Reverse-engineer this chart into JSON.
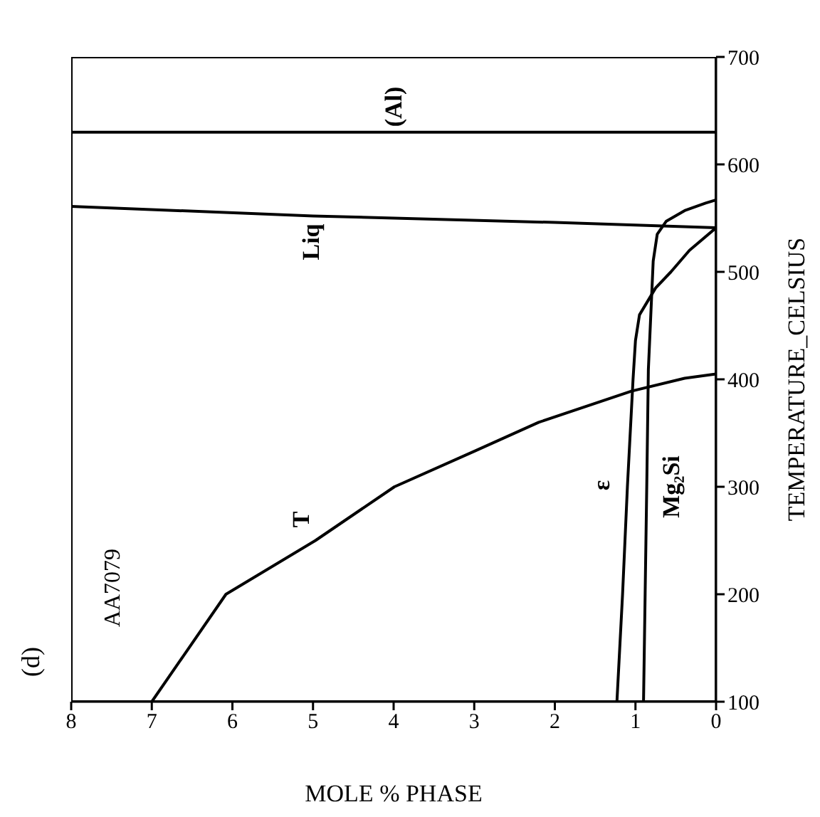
{
  "chart_data": {
    "type": "line",
    "title": "(d)",
    "xlabel": "MOLE % PHASE",
    "ylabel": "TEMPERATURE_CELSIUS",
    "xlim": [
      8,
      0
    ],
    "xticks": [
      8,
      7,
      6,
      5,
      4,
      3,
      2,
      1,
      0
    ],
    "ylim": [
      100,
      700
    ],
    "yticks": [
      100,
      200,
      300,
      400,
      500,
      600,
      700
    ],
    "series": [
      {
        "name": "T",
        "color": "#000000",
        "x": [
          7.0,
          6.08,
          4.97,
          3.99,
          3.0,
          2.2,
          1.05,
          0.39,
          0
        ],
        "values": [
          100,
          200,
          250,
          300,
          333,
          360,
          389,
          401,
          405
        ]
      },
      {
        "name": "ε",
        "color": "#000000",
        "x": [
          1.23,
          1.16,
          1.1,
          1.03,
          1.0,
          0.95,
          0.75,
          0.56,
          0.33,
          0
        ],
        "values": [
          100,
          200,
          300,
          400,
          436,
          460,
          485,
          500,
          520,
          541
        ]
      },
      {
        "name": "Mg₂Si",
        "color": "#000000",
        "x": [
          0.9,
          0.88,
          0.86,
          0.84,
          0.78,
          0.73,
          0.62,
          0.39,
          0.13,
          0
        ],
        "values": [
          100,
          200,
          300,
          409,
          510,
          535,
          547,
          557,
          564,
          567
        ]
      },
      {
        "name": "Liq",
        "color": "#000000",
        "x": [
          0,
          2,
          5,
          8
        ],
        "values": [
          541,
          546,
          552,
          561
        ]
      },
      {
        "name": "(Al)",
        "color": "#000000",
        "x": [
          0,
          8
        ],
        "values": [
          630,
          630
        ]
      }
    ],
    "annotations": [
      "AA7079"
    ]
  }
}
